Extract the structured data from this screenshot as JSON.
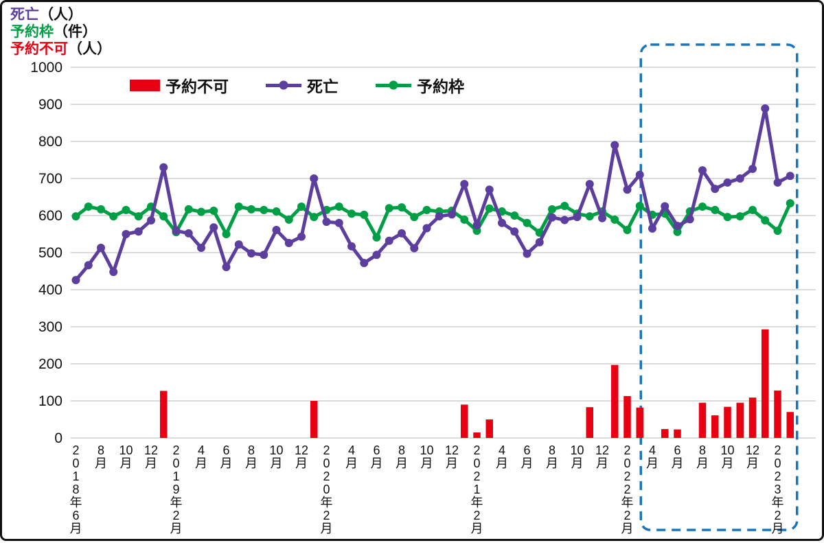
{
  "axis_unit_labels": [
    {
      "text": "死亡",
      "unit": "（人）",
      "color": "#5C3E9E"
    },
    {
      "text": "予約枠",
      "unit": "（件）",
      "color": "#009F45"
    },
    {
      "text": "予約不可",
      "unit": "（人）",
      "color": "#E60012"
    }
  ],
  "legend": {
    "items": [
      {
        "label": "予約不可",
        "type": "bar",
        "color": "#E60012"
      },
      {
        "label": "死亡",
        "type": "line",
        "color": "#5C3E9E"
      },
      {
        "label": "予約枠",
        "type": "line",
        "color": "#009F45"
      }
    ]
  },
  "chart_data": {
    "type": "combo",
    "title": "",
    "ylim": [
      0,
      1000
    ],
    "ytick_step": 100,
    "grid": true,
    "x_tick_every": 2,
    "months": [
      "2018-06",
      "2018-07",
      "2018-08",
      "2018-09",
      "2018-10",
      "2018-11",
      "2018-12",
      "2019-01",
      "2019-02",
      "2019-03",
      "2019-04",
      "2019-05",
      "2019-06",
      "2019-07",
      "2019-08",
      "2019-09",
      "2019-10",
      "2019-11",
      "2019-12",
      "2020-01",
      "2020-02",
      "2020-03",
      "2020-04",
      "2020-05",
      "2020-06",
      "2020-07",
      "2020-08",
      "2020-09",
      "2020-10",
      "2020-11",
      "2020-12",
      "2021-01",
      "2021-02",
      "2021-03",
      "2021-04",
      "2021-05",
      "2021-06",
      "2021-07",
      "2021-08",
      "2021-09",
      "2021-10",
      "2021-11",
      "2021-12",
      "2022-01",
      "2022-02",
      "2022-03",
      "2022-04",
      "2022-05",
      "2022-06",
      "2022-07",
      "2022-08",
      "2022-09",
      "2022-10",
      "2022-11",
      "2022-12",
      "2023-01",
      "2023-02",
      "2023-03"
    ],
    "x_tick_labels": [
      "2018年6月",
      "8月",
      "10月",
      "12月",
      "2019年2月",
      "4月",
      "6月",
      "8月",
      "10月",
      "12月",
      "2020年2月",
      "4月",
      "6月",
      "8月",
      "10月",
      "12月",
      "2021年2月",
      "4月",
      "6月",
      "8月",
      "10月",
      "12月",
      "2022年2月",
      "4月",
      "6月",
      "8月",
      "10月",
      "12月",
      "2023年2月"
    ],
    "series": [
      {
        "name": "予約不可",
        "type": "bar",
        "unit": "人",
        "color": "#E60012",
        "values": [
          0,
          0,
          0,
          0,
          0,
          0,
          0,
          127,
          0,
          0,
          0,
          0,
          0,
          0,
          0,
          0,
          0,
          0,
          0,
          100,
          0,
          0,
          0,
          0,
          0,
          0,
          0,
          0,
          0,
          0,
          0,
          90,
          15,
          50,
          0,
          0,
          0,
          0,
          0,
          0,
          0,
          83,
          0,
          197,
          113,
          82,
          0,
          24,
          23,
          0,
          95,
          61,
          84,
          95,
          109,
          293,
          128,
          70
        ]
      },
      {
        "name": "予約枠",
        "type": "line",
        "unit": "件",
        "color": "#009F45",
        "values": [
          598,
          624,
          617,
          598,
          615,
          598,
          624,
          598,
          555,
          617,
          610,
          613,
          550,
          624,
          617,
          615,
          611,
          589,
          624,
          596,
          615,
          624,
          605,
          602,
          541,
          620,
          622,
          596,
          615,
          611,
          613,
          589,
          559,
          619,
          611,
          600,
          580,
          554,
          617,
          626,
          605,
          598,
          611,
          589,
          561,
          626,
          602,
          605,
          556,
          611,
          624,
          615,
          596,
          598,
          615,
          587,
          559,
          633
        ]
      },
      {
        "name": "死亡",
        "type": "line",
        "unit": "人",
        "color": "#5C3E9E",
        "values": [
          426,
          466,
          513,
          448,
          550,
          557,
          587,
          730,
          559,
          552,
          513,
          568,
          461,
          522,
          498,
          494,
          561,
          526,
          543,
          700,
          583,
          580,
          517,
          472,
          494,
          532,
          552,
          512,
          566,
          598,
          603,
          685,
          574,
          670,
          580,
          557,
          497,
          528,
          595,
          588,
          596,
          685,
          593,
          790,
          670,
          710,
          565,
          625,
          572,
          590,
          722,
          672,
          689,
          700,
          726,
          889,
          689,
          707
        ]
      }
    ],
    "highlight_box": {
      "style": "dashed",
      "color": "#1B75BC",
      "start_month": "2022-03",
      "end_month": "2023-03"
    }
  }
}
